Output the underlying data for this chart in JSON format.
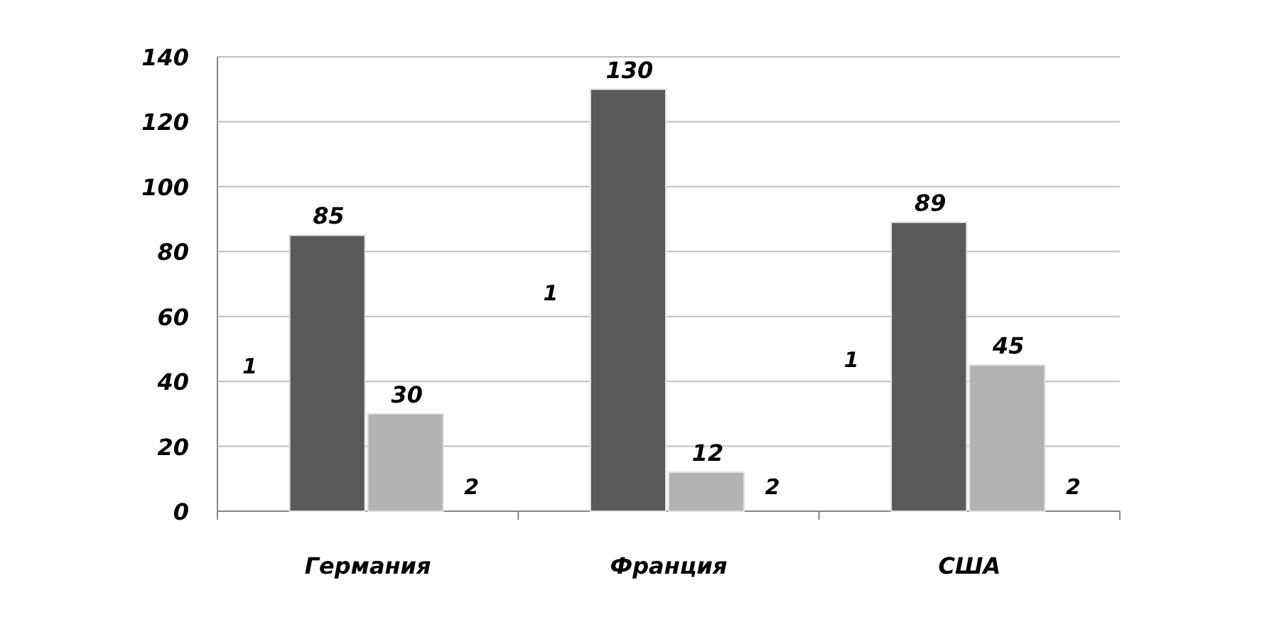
{
  "chart_data": {
    "type": "bar",
    "categories": [
      "Германия",
      "Франция",
      "США"
    ],
    "series": [
      {
        "name": "1",
        "color": "#595959",
        "values": [
          85,
          130,
          89
        ]
      },
      {
        "name": "2",
        "color": "#b3b3b3",
        "values": [
          30,
          12,
          45
        ]
      }
    ],
    "ylim": [
      0,
      140
    ],
    "yticks": [
      0,
      20,
      40,
      60,
      80,
      100,
      120,
      140
    ],
    "grid": "y",
    "data_labels": true
  }
}
